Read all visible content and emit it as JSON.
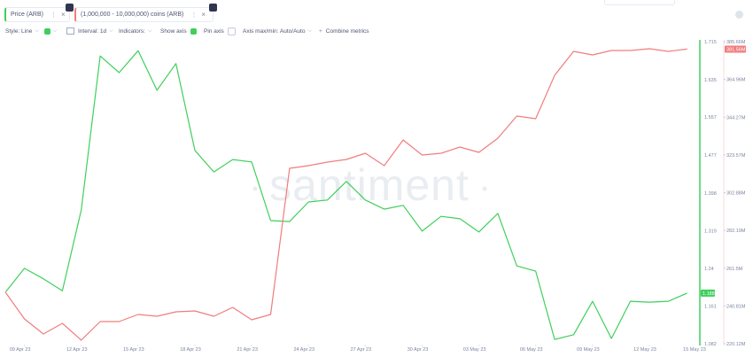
{
  "toolbar": {
    "style": "Style: Line",
    "interval": "Interval: 1d",
    "indicators": "Indicators:",
    "show_axis": "Show axis",
    "pin_axis": "Pin axis",
    "axis_minmax": "Axis max/min: Auto/Auto",
    "combine": "Combine metrics"
  },
  "chart_data": {
    "type": "line",
    "watermark": "santiment",
    "x": [
      "2023-04-08",
      "2023-04-09",
      "2023-04-10",
      "2023-04-11",
      "2023-04-12",
      "2023-04-13",
      "2023-04-14",
      "2023-04-15",
      "2023-04-16",
      "2023-04-17",
      "2023-04-18",
      "2023-04-19",
      "2023-04-20",
      "2023-04-21",
      "2023-04-22",
      "2023-04-23",
      "2023-04-24",
      "2023-04-25",
      "2023-04-26",
      "2023-04-27",
      "2023-04-28",
      "2023-04-29",
      "2023-04-30",
      "2023-05-01",
      "2023-05-02",
      "2023-05-03",
      "2023-05-04",
      "2023-05-05",
      "2023-05-06",
      "2023-05-07",
      "2023-05-08",
      "2023-05-09",
      "2023-05-10",
      "2023-05-11",
      "2023-05-12",
      "2023-05-13",
      "2023-05-14"
    ],
    "xlim": [
      "2023-04-07T17:00",
      "2023-05-14T16:00"
    ],
    "xticks": [
      {
        "value": "2023-04-09",
        "label": "09 Apr 23"
      },
      {
        "value": "2023-04-12",
        "label": "12 Apr 23"
      },
      {
        "value": "2023-04-15",
        "label": "15 Apr 23"
      },
      {
        "value": "2023-04-18",
        "label": "18 Apr 23"
      },
      {
        "value": "2023-04-21",
        "label": "21 Apr 23"
      },
      {
        "value": "2023-04-24",
        "label": "24 Apr 23"
      },
      {
        "value": "2023-04-27",
        "label": "27 Apr 23"
      },
      {
        "value": "2023-04-30",
        "label": "30 Apr 23"
      },
      {
        "value": "2023-05-03",
        "label": "03 May 23"
      },
      {
        "value": "2023-05-06",
        "label": "06 May 23"
      },
      {
        "value": "2023-05-09",
        "label": "09 May 23"
      },
      {
        "value": "2023-05-12",
        "label": "12 May 23"
      },
      {
        "value": "2023-05-15",
        "label": "15 May 23"
      }
    ],
    "ylim": [
      1.082,
      1.715
    ],
    "yticks": [
      1.715,
      1.635,
      1.557,
      1.477,
      1.398,
      1.319,
      1.24,
      1.161,
      1.082
    ],
    "y2lim": [
      220120000,
      385660000
    ],
    "y2ticks": [
      {
        "value": 385660000,
        "label": "385.66M"
      },
      {
        "value": 364960000,
        "label": "364.96M"
      },
      {
        "value": 344270000,
        "label": "344.27M"
      },
      {
        "value": 323570000,
        "label": "323.57M"
      },
      {
        "value": 302880000,
        "label": "302.88M"
      },
      {
        "value": 282190000,
        "label": "282.19M"
      },
      {
        "value": 261500000,
        "label": "261.5M"
      },
      {
        "value": 240810000,
        "label": "240.81M"
      },
      {
        "value": 220120000,
        "label": "220.12M"
      }
    ],
    "series": [
      {
        "name": "Price (ARB)",
        "color": "#3fcf5c",
        "axis": "y",
        "current_label": "1.188",
        "values": [
          1.19,
          1.24,
          1.218,
          1.193,
          1.362,
          1.685,
          1.65,
          1.696,
          1.613,
          1.669,
          1.487,
          1.442,
          1.468,
          1.463,
          1.34,
          1.338,
          1.379,
          1.383,
          1.422,
          1.383,
          1.364,
          1.372,
          1.318,
          1.349,
          1.344,
          1.316,
          1.355,
          1.245,
          1.234,
          1.091,
          1.101,
          1.171,
          1.093,
          1.171,
          1.169,
          1.171,
          1.188
        ]
      },
      {
        "name": "(1,000,000 - 10,000,000) coins (ARB)",
        "color": "#f07d7d",
        "axis": "y2",
        "current_label": "381.56M",
        "values": [
          248260000,
          233700000,
          225440000,
          231270000,
          222060000,
          232240000,
          232240000,
          236120000,
          235150000,
          237580000,
          238070000,
          235150000,
          240000000,
          233210000,
          236120000,
          316230000,
          317690000,
          319630000,
          321090000,
          324490000,
          317690000,
          331770000,
          323510000,
          324490000,
          327890000,
          324970000,
          332740000,
          344880000,
          343420000,
          367210000,
          380320000,
          378380000,
          380810000,
          380810000,
          381780000,
          380320000,
          381560000
        ]
      }
    ]
  }
}
